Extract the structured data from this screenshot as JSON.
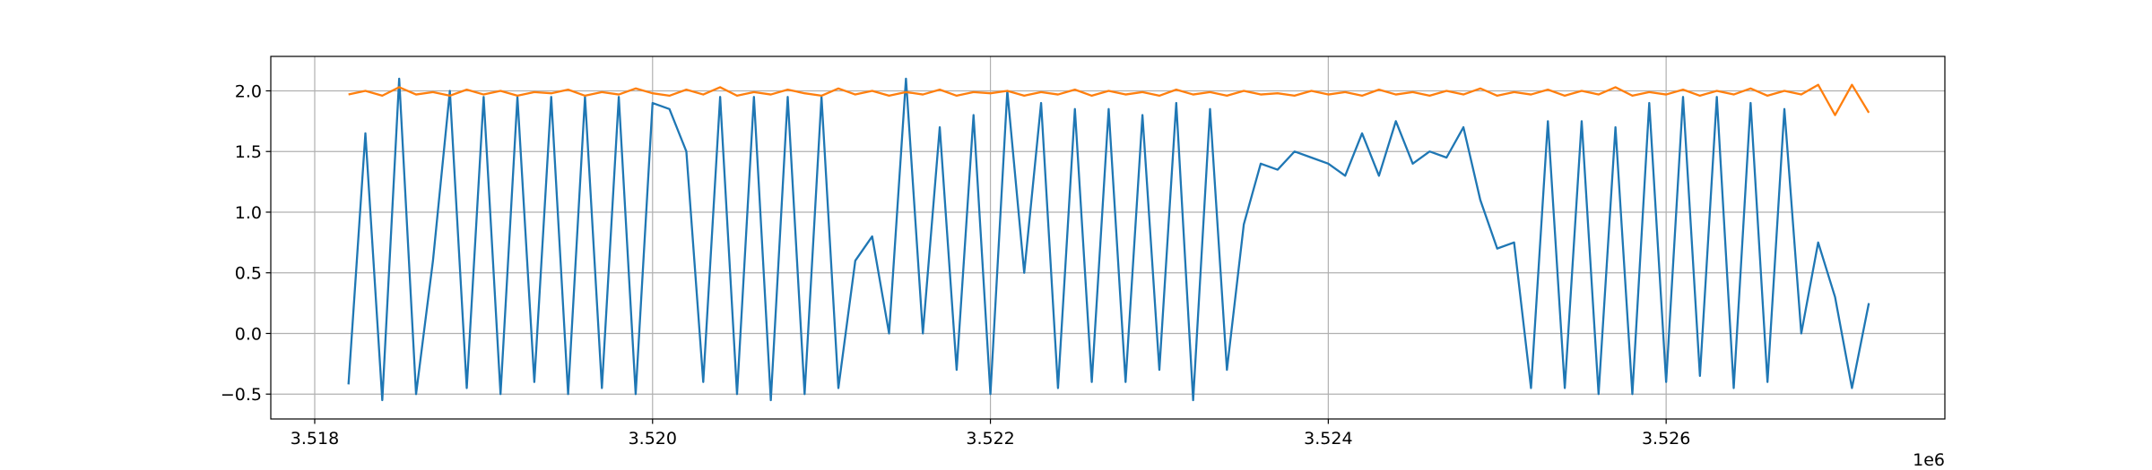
{
  "chart_data": {
    "type": "line",
    "x": [
      3.5182,
      3.5183,
      3.5184,
      3.5185,
      3.5186,
      3.5187,
      3.5188,
      3.5189,
      3.519,
      3.5191,
      3.5192,
      3.5193,
      3.5194,
      3.5195,
      3.5196,
      3.5197,
      3.5198,
      3.5199,
      3.52,
      3.5201,
      3.5202,
      3.5203,
      3.5204,
      3.5205,
      3.5206,
      3.5207,
      3.5208,
      3.5209,
      3.521,
      3.5211,
      3.5212,
      3.5213,
      3.5214,
      3.5215,
      3.5216,
      3.5217,
      3.5218,
      3.5219,
      3.522,
      3.5221,
      3.5222,
      3.5223,
      3.5224,
      3.5225,
      3.5226,
      3.5227,
      3.5228,
      3.5229,
      3.523,
      3.5231,
      3.5232,
      3.5233,
      3.5234,
      3.5235,
      3.5236,
      3.5237,
      3.5238,
      3.5239,
      3.524,
      3.5241,
      3.5242,
      3.5243,
      3.5244,
      3.5245,
      3.5246,
      3.5247,
      3.5248,
      3.5249,
      3.525,
      3.5251,
      3.5252,
      3.5253,
      3.5254,
      3.5255,
      3.5256,
      3.5257,
      3.5258,
      3.5259,
      3.526,
      3.5261,
      3.5262,
      3.5263,
      3.5264,
      3.5265,
      3.5266,
      3.5267,
      3.5268,
      3.5269,
      3.527,
      3.5271,
      3.5272
    ],
    "series": [
      {
        "color": "#1f77b4",
        "values": [
          -0.42,
          1.65,
          -0.55,
          2.1,
          -0.5,
          0.6,
          2.0,
          -0.45,
          1.95,
          -0.5,
          1.95,
          -0.4,
          1.95,
          -0.5,
          1.95,
          -0.45,
          1.95,
          -0.5,
          1.9,
          1.85,
          1.5,
          -0.4,
          1.95,
          -0.5,
          1.95,
          -0.55,
          1.95,
          -0.5,
          1.95,
          -0.45,
          0.6,
          0.8,
          0.0,
          2.1,
          0.0,
          1.7,
          -0.3,
          1.8,
          -0.5,
          2.0,
          0.5,
          1.9,
          -0.45,
          1.85,
          -0.4,
          1.85,
          -0.4,
          1.8,
          -0.3,
          1.9,
          -0.55,
          1.85,
          -0.3,
          0.9,
          1.4,
          1.35,
          1.5,
          1.45,
          1.4,
          1.3,
          1.65,
          1.3,
          1.75,
          1.4,
          1.5,
          1.45,
          1.7,
          1.1,
          0.7,
          0.75,
          -0.45,
          1.75,
          -0.45,
          1.75,
          -0.5,
          1.7,
          -0.5,
          1.9,
          -0.4,
          1.95,
          -0.35,
          1.95,
          -0.45,
          1.9,
          -0.4,
          1.85,
          0.0,
          0.75,
          0.3,
          -0.45,
          0.25
        ]
      },
      {
        "color": "#ff7f0e",
        "values": [
          1.97,
          2.0,
          1.96,
          2.03,
          1.97,
          1.99,
          1.96,
          2.01,
          1.97,
          2.0,
          1.96,
          1.99,
          1.98,
          2.01,
          1.96,
          1.99,
          1.97,
          2.02,
          1.98,
          1.96,
          2.01,
          1.97,
          2.03,
          1.96,
          1.99,
          1.97,
          2.01,
          1.98,
          1.96,
          2.02,
          1.97,
          2.0,
          1.96,
          1.99,
          1.97,
          2.01,
          1.96,
          1.99,
          1.98,
          2.0,
          1.96,
          1.99,
          1.97,
          2.01,
          1.96,
          2.0,
          1.97,
          1.99,
          1.96,
          2.01,
          1.97,
          1.99,
          1.96,
          2.0,
          1.97,
          1.98,
          1.96,
          2.0,
          1.97,
          1.99,
          1.96,
          2.01,
          1.97,
          1.99,
          1.96,
          2.0,
          1.97,
          2.02,
          1.96,
          1.99,
          1.97,
          2.01,
          1.96,
          2.0,
          1.97,
          2.03,
          1.96,
          1.99,
          1.97,
          2.01,
          1.96,
          2.0,
          1.97,
          2.02,
          1.96,
          2.0,
          1.97,
          2.05,
          1.8,
          2.05,
          1.82
        ]
      }
    ],
    "xlim": [
      3.51774,
      3.52765
    ],
    "xticks": [
      3.518,
      {
        "value": 3.52,
        "label": "3.520"
      },
      3.522,
      3.524,
      3.526
    ],
    "x_offset_label": "1e6",
    "ylim": [
      -0.705,
      2.284
    ],
    "yticks": [
      {
        "value": -0.5,
        "label": "−0.5"
      },
      {
        "value": 0,
        "label": "0.0"
      },
      0.5,
      {
        "value": 1,
        "label": "1.0"
      },
      1.5,
      {
        "value": 2,
        "label": "2.0"
      }
    ],
    "grid": true
  }
}
